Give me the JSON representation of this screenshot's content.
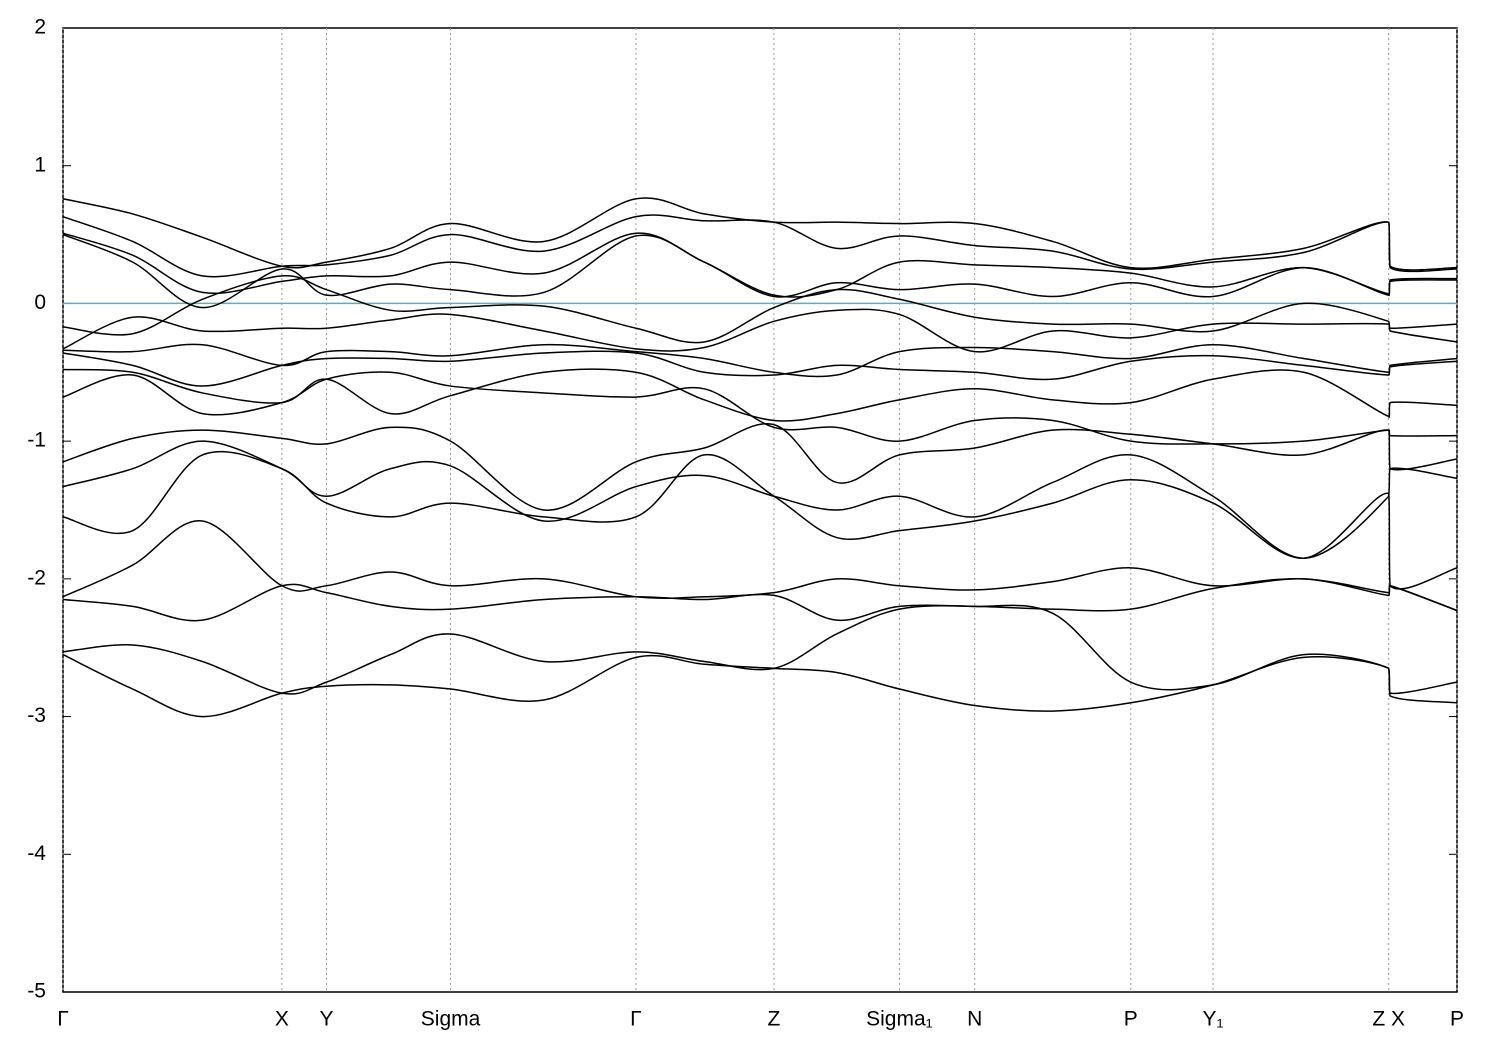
{
  "chart_data": {
    "type": "line",
    "x": [
      0,
      0.05,
      0.1,
      0.157,
      0.189,
      0.235,
      0.278,
      0.345,
      0.411,
      0.46,
      0.51,
      0.555,
      0.6,
      0.654,
      0.71,
      0.766,
      0.825,
      0.89,
      0.951,
      0.952,
      1.0
    ],
    "xlim": [
      0,
      1.0
    ],
    "xticks": [
      {
        "value": 0,
        "label": "Γ"
      },
      {
        "value": 0.157,
        "label": "X"
      },
      {
        "value": 0.189,
        "label": "Y"
      },
      {
        "value": 0.278,
        "label": "Sigma"
      },
      {
        "value": 0.411,
        "label": "Γ"
      },
      {
        "value": 0.51,
        "label": "Z"
      },
      {
        "value": 0.6,
        "label": "Sigma₁"
      },
      {
        "value": 0.654,
        "label": "N"
      },
      {
        "value": 0.766,
        "label": "P"
      },
      {
        "value": 0.825,
        "label": "Y₁"
      },
      {
        "value": 0.951,
        "label": "Z  X"
      },
      {
        "value": 1.0,
        "label": "P"
      }
    ],
    "ylim": [
      -5,
      2
    ],
    "yticks": [
      -5,
      -4,
      -3,
      -2,
      -1,
      0,
      1,
      2
    ],
    "color": "#000000",
    "fermi_level": 0,
    "fermi_color": "#5aaec4",
    "grid": true,
    "series": [
      {
        "values": [
          0.76,
          0.65,
          0.48,
          0.27,
          0.3,
          0.4,
          0.58,
          0.45,
          0.76,
          0.65,
          0.59,
          0.59,
          0.58,
          0.58,
          0.45,
          0.26,
          0.32,
          0.4,
          0.59,
          0.27,
          0.26
        ]
      },
      {
        "values": [
          0.63,
          0.45,
          0.2,
          0.27,
          0.28,
          0.35,
          0.5,
          0.38,
          0.63,
          0.6,
          0.59,
          0.4,
          0.49,
          0.42,
          0.38,
          0.25,
          0.3,
          0.37,
          0.59,
          0.26,
          0.25
        ]
      },
      {
        "values": [
          0.51,
          0.35,
          0.08,
          0.16,
          0.2,
          0.2,
          0.3,
          0.22,
          0.51,
          0.3,
          0.06,
          0.1,
          0.3,
          0.28,
          0.26,
          0.22,
          0.12,
          0.26,
          0.07,
          0.17,
          0.18
        ]
      },
      {
        "values": [
          0.5,
          0.3,
          -0.03,
          0.25,
          0.06,
          0.14,
          0.1,
          0.08,
          0.49,
          0.3,
          0.05,
          0.15,
          0.1,
          0.14,
          0.05,
          0.15,
          0.05,
          0.26,
          0.06,
          0.16,
          0.17
        ]
      },
      {
        "values": [
          -0.17,
          -0.22,
          0.03,
          0.2,
          0.1,
          -0.05,
          -0.03,
          -0.02,
          -0.18,
          -0.28,
          -0.03,
          0.1,
          0.03,
          -0.1,
          -0.15,
          -0.15,
          -0.2,
          0.0,
          -0.13,
          -0.18,
          -0.15
        ]
      },
      {
        "values": [
          -0.33,
          -0.1,
          -0.2,
          -0.18,
          -0.18,
          -0.12,
          -0.08,
          -0.2,
          -0.33,
          -0.32,
          -0.13,
          -0.05,
          -0.08,
          -0.35,
          -0.2,
          -0.25,
          -0.15,
          -0.15,
          -0.15,
          -0.2,
          -0.28
        ]
      },
      {
        "values": [
          -0.34,
          -0.35,
          -0.3,
          -0.45,
          -0.35,
          -0.35,
          -0.38,
          -0.3,
          -0.35,
          -0.4,
          -0.5,
          -0.52,
          -0.35,
          -0.32,
          -0.35,
          -0.4,
          -0.3,
          -0.4,
          -0.5,
          -0.45,
          -0.4
        ]
      },
      {
        "values": [
          -0.36,
          -0.45,
          -0.6,
          -0.45,
          -0.4,
          -0.4,
          -0.42,
          -0.36,
          -0.36,
          -0.5,
          -0.52,
          -0.45,
          -0.48,
          -0.5,
          -0.55,
          -0.42,
          -0.38,
          -0.45,
          -0.52,
          -0.46,
          -0.42
        ]
      },
      {
        "values": [
          -0.48,
          -0.5,
          -0.65,
          -0.72,
          -0.55,
          -0.8,
          -0.67,
          -0.5,
          -0.5,
          -0.7,
          -0.85,
          -0.8,
          -0.7,
          -0.62,
          -0.7,
          -0.72,
          -0.55,
          -0.5,
          -0.82,
          -0.72,
          -0.74
        ]
      },
      {
        "values": [
          -0.68,
          -0.52,
          -0.8,
          -0.72,
          -0.55,
          -0.5,
          -0.6,
          -0.65,
          -0.68,
          -0.62,
          -0.9,
          -0.9,
          -1.0,
          -0.85,
          -0.85,
          -1.0,
          -1.02,
          -1.0,
          -0.92,
          -0.96,
          -0.96
        ]
      },
      {
        "values": [
          -1.15,
          -0.98,
          -0.92,
          -0.98,
          -1.02,
          -0.9,
          -1.0,
          -1.5,
          -1.15,
          -1.05,
          -0.88,
          -1.3,
          -1.1,
          -1.05,
          -0.92,
          -0.95,
          -1.02,
          -1.1,
          -0.92,
          -1.2,
          -1.13
        ]
      },
      {
        "values": [
          -1.33,
          -1.2,
          -1.0,
          -1.2,
          -1.4,
          -1.2,
          -1.18,
          -1.58,
          -1.33,
          -1.25,
          -1.4,
          -1.5,
          -1.4,
          -1.55,
          -1.3,
          -1.1,
          -1.4,
          -1.85,
          -1.4,
          -1.2,
          -1.27
        ]
      },
      {
        "values": [
          -1.55,
          -1.65,
          -1.1,
          -1.2,
          -1.45,
          -1.55,
          -1.45,
          -1.55,
          -1.55,
          -1.1,
          -1.4,
          -1.7,
          -1.65,
          -1.58,
          -1.45,
          -1.28,
          -1.45,
          -1.85,
          -1.38,
          -2.05,
          -1.92
        ]
      },
      {
        "values": [
          -2.13,
          -1.9,
          -1.58,
          -2.05,
          -2.05,
          -1.95,
          -2.05,
          -2.0,
          -2.13,
          -2.13,
          -2.1,
          -2.0,
          -2.05,
          -2.08,
          -2.02,
          -1.92,
          -2.05,
          -2.0,
          -2.1,
          -2.05,
          -2.23
        ]
      },
      {
        "values": [
          -2.15,
          -2.2,
          -2.3,
          -2.05,
          -2.1,
          -2.2,
          -2.22,
          -2.15,
          -2.13,
          -2.15,
          -2.12,
          -2.3,
          -2.2,
          -2.2,
          -2.22,
          -2.22,
          -2.07,
          -2.0,
          -2.12,
          -2.05,
          -2.23
        ]
      },
      {
        "values": [
          -2.53,
          -2.48,
          -2.6,
          -2.83,
          -2.75,
          -2.55,
          -2.4,
          -2.6,
          -2.53,
          -2.6,
          -2.65,
          -2.4,
          -2.22,
          -2.2,
          -2.25,
          -2.75,
          -2.77,
          -2.55,
          -2.65,
          -2.83,
          -2.75
        ]
      },
      {
        "values": [
          -2.55,
          -2.8,
          -3.0,
          -2.83,
          -2.78,
          -2.77,
          -2.8,
          -2.88,
          -2.57,
          -2.62,
          -2.65,
          -2.68,
          -2.8,
          -2.92,
          -2.96,
          -2.9,
          -2.77,
          -2.57,
          -2.65,
          -2.85,
          -2.9
        ]
      }
    ]
  }
}
